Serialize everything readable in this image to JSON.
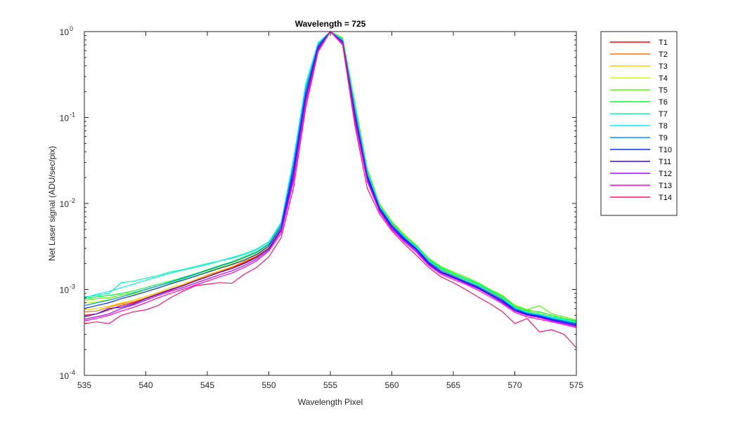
{
  "chart_data": {
    "type": "line",
    "title": "Wavelength = 725",
    "xlabel": "Wavelength Pixel",
    "ylabel": "Net Laser signal  (ADU/sec/pix)",
    "yscale": "log",
    "xlim": [
      535,
      575
    ],
    "ylim": [
      0.0001,
      1
    ],
    "x_ticks": [
      535,
      540,
      545,
      550,
      555,
      560,
      565,
      570,
      575
    ],
    "y_ticks": [
      {
        "value": 0.0001,
        "base": "10",
        "exp": "-4"
      },
      {
        "value": 0.001,
        "base": "10",
        "exp": "-3"
      },
      {
        "value": 0.01,
        "base": "10",
        "exp": "-2"
      },
      {
        "value": 0.1,
        "base": "10",
        "exp": "-1"
      },
      {
        "value": 1,
        "base": "10",
        "exp": "0"
      }
    ],
    "grid": false,
    "legend_position": "outside-top-right",
    "x": [
      535,
      536,
      537,
      538,
      539,
      540,
      541,
      542,
      543,
      544,
      545,
      546,
      547,
      548,
      549,
      550,
      551,
      552,
      553,
      554,
      555,
      556,
      557,
      558,
      559,
      560,
      561,
      562,
      563,
      564,
      565,
      566,
      567,
      568,
      569,
      570,
      571,
      572,
      573,
      574,
      575
    ],
    "series": [
      {
        "name": "T1",
        "color": "#ff0000",
        "values": [
          0.0005,
          0.00052,
          0.00058,
          0.00065,
          0.0007,
          0.00078,
          0.00088,
          0.00098,
          0.0011,
          0.00125,
          0.0014,
          0.0016,
          0.0018,
          0.00205,
          0.0024,
          0.003,
          0.0048,
          0.02,
          0.15,
          0.6,
          1.0,
          0.76,
          0.1,
          0.02,
          0.009,
          0.0056,
          0.004,
          0.003,
          0.002,
          0.0016,
          0.0014,
          0.0012,
          0.00105,
          0.0009,
          0.00075,
          0.0006,
          0.00052,
          0.00048,
          0.00045,
          0.00042,
          0.0004
        ]
      },
      {
        "name": "T2",
        "color": "#ff7000",
        "values": [
          0.00055,
          0.00056,
          0.00062,
          0.00068,
          0.00072,
          0.0008,
          0.0009,
          0.001,
          0.00112,
          0.00128,
          0.00145,
          0.00162,
          0.00182,
          0.0021,
          0.00245,
          0.0031,
          0.005,
          0.022,
          0.16,
          0.62,
          1.0,
          0.8,
          0.12,
          0.022,
          0.0092,
          0.0058,
          0.0041,
          0.0031,
          0.0021,
          0.0017,
          0.00145,
          0.00125,
          0.0011,
          0.00092,
          0.00078,
          0.00062,
          0.00054,
          0.0005,
          0.00046,
          0.00043,
          0.00041
        ]
      },
      {
        "name": "T3",
        "color": "#ffd000",
        "values": [
          0.00058,
          0.0006,
          0.00064,
          0.0007,
          0.00075,
          0.00083,
          0.00092,
          0.00105,
          0.00115,
          0.0013,
          0.00148,
          0.00165,
          0.00185,
          0.00215,
          0.0025,
          0.00315,
          0.0052,
          0.024,
          0.17,
          0.64,
          1.0,
          0.82,
          0.13,
          0.023,
          0.0095,
          0.0059,
          0.0042,
          0.0032,
          0.00215,
          0.00175,
          0.00148,
          0.00128,
          0.00112,
          0.00095,
          0.0008,
          0.00064,
          0.00056,
          0.00052,
          0.00048,
          0.00045,
          0.00037
        ]
      },
      {
        "name": "T4",
        "color": "#c8ff00",
        "values": [
          0.0007,
          0.00072,
          0.00076,
          0.00082,
          0.00088,
          0.00095,
          0.00105,
          0.00115,
          0.00128,
          0.00142,
          0.0016,
          0.0018,
          0.002,
          0.0023,
          0.00265,
          0.0033,
          0.0056,
          0.028,
          0.2,
          0.68,
          1.0,
          0.85,
          0.15,
          0.026,
          0.01,
          0.0062,
          0.0044,
          0.0033,
          0.0022,
          0.0018,
          0.00152,
          0.0013,
          0.00114,
          0.00098,
          0.00082,
          0.00066,
          0.00058,
          0.00054,
          0.0005,
          0.00046,
          0.00042
        ]
      },
      {
        "name": "T5",
        "color": "#50ff00",
        "values": [
          0.00075,
          0.00078,
          0.0008,
          0.00086,
          0.00092,
          0.001,
          0.0011,
          0.0012,
          0.00132,
          0.00148,
          0.00165,
          0.00185,
          0.00205,
          0.00235,
          0.0027,
          0.00335,
          0.0057,
          0.029,
          0.21,
          0.7,
          1.0,
          0.84,
          0.145,
          0.025,
          0.0098,
          0.0061,
          0.0043,
          0.00325,
          0.0023,
          0.00185,
          0.0016,
          0.0014,
          0.0012,
          0.001,
          0.00085,
          0.00065,
          0.00058,
          0.00065,
          0.00052,
          0.00048,
          0.00044
        ]
      },
      {
        "name": "T6",
        "color": "#00ff30",
        "values": [
          0.00078,
          0.00082,
          0.00085,
          0.0009,
          0.00096,
          0.00105,
          0.00115,
          0.00125,
          0.00138,
          0.00152,
          0.0017,
          0.0019,
          0.0021,
          0.0024,
          0.00275,
          0.0034,
          0.0058,
          0.03,
          0.22,
          0.71,
          1.0,
          0.83,
          0.14,
          0.0245,
          0.0096,
          0.006,
          0.00425,
          0.0032,
          0.00225,
          0.0018,
          0.00155,
          0.00135,
          0.00118,
          0.00098,
          0.00083,
          0.00064,
          0.00057,
          0.00055,
          0.0005,
          0.00046,
          0.00043
        ]
      },
      {
        "name": "T7",
        "color": "#00ffa0",
        "values": [
          0.00082,
          0.00085,
          0.0009,
          0.0012,
          0.00125,
          0.00135,
          0.00145,
          0.0016,
          0.0017,
          0.00185,
          0.002,
          0.00215,
          0.00235,
          0.0026,
          0.00295,
          0.0036,
          0.006,
          0.032,
          0.24,
          0.73,
          1.0,
          0.82,
          0.135,
          0.024,
          0.0095,
          0.0059,
          0.0042,
          0.00315,
          0.0022,
          0.00175,
          0.0015,
          0.00132,
          0.00115,
          0.00096,
          0.0008,
          0.00062,
          0.00055,
          0.00052,
          0.00048,
          0.00045,
          0.00042
        ]
      },
      {
        "name": "T8",
        "color": "#00f0ff",
        "values": [
          0.0008,
          0.00088,
          0.00095,
          0.00105,
          0.00115,
          0.00128,
          0.0014,
          0.00155,
          0.00168,
          0.0018,
          0.00195,
          0.00215,
          0.0023,
          0.00255,
          0.0029,
          0.00355,
          0.006,
          0.033,
          0.25,
          0.74,
          1.0,
          0.81,
          0.13,
          0.0235,
          0.0094,
          0.00585,
          0.00415,
          0.0031,
          0.00218,
          0.00172,
          0.00148,
          0.0013,
          0.00112,
          0.00094,
          0.00079,
          0.00061,
          0.00054,
          0.00051,
          0.00047,
          0.00044,
          0.00041
        ]
      },
      {
        "name": "T9",
        "color": "#0090ff",
        "values": [
          0.00065,
          0.0007,
          0.00075,
          0.00082,
          0.0009,
          0.001,
          0.0011,
          0.00122,
          0.00135,
          0.0015,
          0.00168,
          0.00188,
          0.00208,
          0.00235,
          0.0027,
          0.00335,
          0.0056,
          0.028,
          0.21,
          0.7,
          1.0,
          0.78,
          0.12,
          0.022,
          0.009,
          0.0056,
          0.004,
          0.003,
          0.0021,
          0.00165,
          0.00142,
          0.00125,
          0.00108,
          0.0009,
          0.00076,
          0.0006,
          0.00053,
          0.0005,
          0.00046,
          0.00043,
          0.0004
        ]
      },
      {
        "name": "T10",
        "color": "#0030ff",
        "values": [
          0.0006,
          0.00065,
          0.0007,
          0.00078,
          0.00085,
          0.00094,
          0.00104,
          0.00116,
          0.00128,
          0.00142,
          0.00158,
          0.00176,
          0.00195,
          0.0022,
          0.00255,
          0.0032,
          0.0053,
          0.025,
          0.19,
          0.67,
          1.0,
          0.76,
          0.11,
          0.021,
          0.0088,
          0.0055,
          0.0039,
          0.00295,
          0.00205,
          0.0016,
          0.0014,
          0.00122,
          0.00106,
          0.00088,
          0.00074,
          0.00058,
          0.00052,
          0.00049,
          0.00045,
          0.00042,
          0.00039
        ]
      },
      {
        "name": "T11",
        "color": "#4000ff",
        "values": [
          0.00048,
          0.00052,
          0.0006,
          0.00062,
          0.00068,
          0.00078,
          0.00088,
          0.001,
          0.0011,
          0.00125,
          0.0014,
          0.00158,
          0.00175,
          0.002,
          0.00235,
          0.003,
          0.005,
          0.022,
          0.17,
          0.64,
          1.0,
          0.75,
          0.1,
          0.02,
          0.0085,
          0.0053,
          0.0038,
          0.0029,
          0.002,
          0.00158,
          0.00138,
          0.0012,
          0.00104,
          0.00086,
          0.00072,
          0.00057,
          0.00051,
          0.00048,
          0.00044,
          0.00041,
          0.00038
        ]
      },
      {
        "name": "T12",
        "color": "#b000ff",
        "values": [
          0.00045,
          0.00048,
          0.00052,
          0.0006,
          0.00066,
          0.00075,
          0.00085,
          0.00095,
          0.00105,
          0.00118,
          0.00132,
          0.00148,
          0.00165,
          0.0019,
          0.00225,
          0.0029,
          0.0048,
          0.02,
          0.16,
          0.62,
          1.0,
          0.74,
          0.095,
          0.019,
          0.0082,
          0.0051,
          0.0037,
          0.0028,
          0.00195,
          0.00155,
          0.00135,
          0.00118,
          0.00102,
          0.00085,
          0.0007,
          0.00056,
          0.0005,
          0.00047,
          0.00043,
          0.0004,
          0.00037
        ]
      },
      {
        "name": "T13",
        "color": "#ff00e0",
        "values": [
          0.00043,
          0.00046,
          0.0005,
          0.00056,
          0.00062,
          0.0007,
          0.0008,
          0.0009,
          0.001,
          0.00112,
          0.00125,
          0.0014,
          0.00155,
          0.0018,
          0.00215,
          0.0028,
          0.0045,
          0.018,
          0.15,
          0.6,
          1.0,
          0.72,
          0.09,
          0.018,
          0.008,
          0.005,
          0.0036,
          0.0027,
          0.0019,
          0.0015,
          0.0013,
          0.00115,
          0.00098,
          0.00082,
          0.00068,
          0.00054,
          0.00048,
          0.00045,
          0.00042,
          0.00039,
          0.00036
        ]
      },
      {
        "name": "T14",
        "color": "#ff1070",
        "values": [
          0.0004,
          0.00042,
          0.0004,
          0.0005,
          0.00055,
          0.00058,
          0.00065,
          0.0008,
          0.00095,
          0.0011,
          0.00115,
          0.0012,
          0.00118,
          0.0015,
          0.0018,
          0.0024,
          0.004,
          0.015,
          0.13,
          0.58,
          1.0,
          0.7,
          0.08,
          0.015,
          0.0075,
          0.0048,
          0.0034,
          0.0025,
          0.0018,
          0.0014,
          0.0012,
          0.001,
          0.00082,
          0.00068,
          0.00055,
          0.0004,
          0.00046,
          0.00032,
          0.00034,
          0.0003,
          0.00021
        ]
      }
    ]
  }
}
